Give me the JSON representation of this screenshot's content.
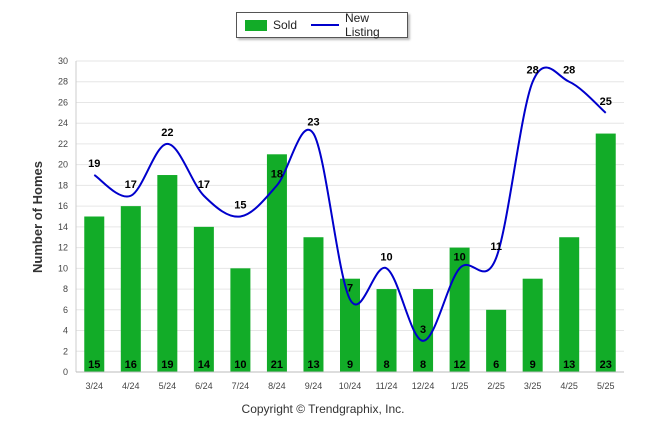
{
  "colors": {
    "sold": "#12ac28",
    "new_listing": "#0000cc",
    "grid": "#e6e6e6"
  },
  "legend": {
    "sold_label": "Sold",
    "new_listing_label": "New Listing"
  },
  "copyright": "Copyright © Trendgraphix, Inc.",
  "chart_data": {
    "type": "bar",
    "ylabel": "Number of Homes",
    "ylim": [
      0,
      30
    ],
    "yticks": [
      0,
      2,
      4,
      6,
      8,
      10,
      12,
      14,
      16,
      18,
      20,
      22,
      24,
      26,
      28,
      30
    ],
    "grid": true,
    "legend_position": "top-center",
    "categories": [
      "3/24",
      "4/24",
      "5/24",
      "6/24",
      "7/24",
      "8/24",
      "9/24",
      "10/24",
      "11/24",
      "12/24",
      "1/25",
      "2/25",
      "3/25",
      "4/25",
      "5/25"
    ],
    "series": [
      {
        "name": "Sold",
        "type": "bar",
        "values": [
          15,
          16,
          19,
          14,
          10,
          21,
          13,
          9,
          8,
          8,
          12,
          6,
          9,
          13,
          23
        ]
      },
      {
        "name": "New Listing",
        "type": "line",
        "values": [
          19,
          17,
          22,
          17,
          15,
          18,
          23,
          7,
          10,
          3,
          10,
          11,
          28,
          28,
          25
        ]
      }
    ]
  }
}
